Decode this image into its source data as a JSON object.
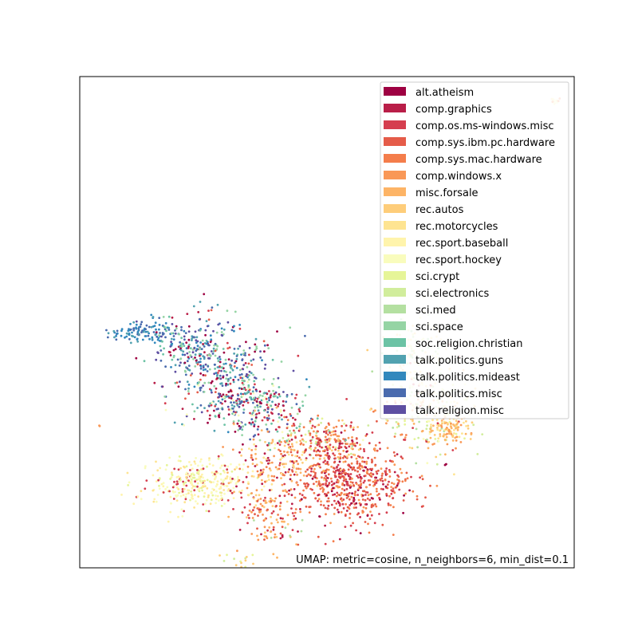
{
  "chart_data": {
    "type": "scatter",
    "title": "",
    "xlabel": "",
    "ylabel": "",
    "ticks": "none",
    "grid": false,
    "legend_position": "top-right",
    "annotation": "UMAP: metric=cosine, n_neighbors=6, min_dist=0.1",
    "series": [
      {
        "name": "alt.atheism",
        "color": "#9e0142"
      },
      {
        "name": "comp.graphics",
        "color": "#b91e48"
      },
      {
        "name": "comp.os.ms-windows.misc",
        "color": "#d53e4f"
      },
      {
        "name": "comp.sys.ibm.pc.hardware",
        "color": "#e55c49"
      },
      {
        "name": "comp.sys.mac.hardware",
        "color": "#f47d4b"
      },
      {
        "name": "comp.windows.x",
        "color": "#f99857"
      },
      {
        "name": "misc.forsale",
        "color": "#fdb466"
      },
      {
        "name": "rec.autos",
        "color": "#fecd7a"
      },
      {
        "name": "rec.motorcycles",
        "color": "#fee491"
      },
      {
        "name": "rec.sport.baseball",
        "color": "#fff4ac"
      },
      {
        "name": "rec.sport.hockey",
        "color": "#f9fcbd"
      },
      {
        "name": "sci.crypt",
        "color": "#e6f598"
      },
      {
        "name": "sci.electronics",
        "color": "#d1ed9c"
      },
      {
        "name": "sci.med",
        "color": "#b4e0a1"
      },
      {
        "name": "sci.space",
        "color": "#95d4a4"
      },
      {
        "name": "soc.religion.christian",
        "color": "#6cc3a5"
      },
      {
        "name": "talk.politics.guns",
        "color": "#52a2b0"
      },
      {
        "name": "talk.politics.mideast",
        "color": "#3288bd"
      },
      {
        "name": "talk.politics.misc",
        "color": "#4a6bae"
      },
      {
        "name": "talk.religion.misc",
        "color": "#5e4fa2"
      }
    ],
    "clusters": [
      {
        "cx": 0.13,
        "cy": 0.48,
        "sx": 0.035,
        "sy": 0.012,
        "n": 110,
        "mix": [
          17,
          17,
          17,
          18,
          16
        ]
      },
      {
        "cx": 0.23,
        "cy": 0.45,
        "sx": 0.04,
        "sy": 0.035,
        "n": 200,
        "mix": [
          17,
          18,
          0,
          15,
          19,
          16,
          1,
          14
        ]
      },
      {
        "cx": 0.3,
        "cy": 0.4,
        "sx": 0.05,
        "sy": 0.045,
        "n": 250,
        "mix": [
          0,
          16,
          19,
          17,
          15,
          14,
          18,
          2,
          3
        ]
      },
      {
        "cx": 0.34,
        "cy": 0.33,
        "sx": 0.06,
        "sy": 0.03,
        "n": 280,
        "mix": [
          0,
          19,
          15,
          18,
          16,
          14,
          1,
          2,
          10
        ]
      },
      {
        "cx": 0.47,
        "cy": 0.27,
        "sx": 0.05,
        "sy": 0.02,
        "n": 120,
        "mix": [
          2,
          3,
          4,
          5,
          13,
          12,
          11,
          15
        ]
      },
      {
        "cx": 0.55,
        "cy": 0.17,
        "sx": 0.06,
        "sy": 0.04,
        "n": 560,
        "mix": [
          2,
          3,
          4,
          1,
          2,
          3,
          4,
          5,
          2,
          3,
          0
        ]
      },
      {
        "cx": 0.5,
        "cy": 0.24,
        "sx": 0.05,
        "sy": 0.03,
        "n": 180,
        "mix": [
          5,
          6,
          1,
          2,
          3,
          4,
          7
        ]
      },
      {
        "cx": 0.7,
        "cy": 0.32,
        "sx": 0.05,
        "sy": 0.05,
        "n": 230,
        "mix": [
          6,
          7,
          8,
          11,
          12,
          13,
          10,
          5,
          2
        ]
      },
      {
        "cx": 0.68,
        "cy": 0.43,
        "sx": 0.04,
        "sy": 0.04,
        "n": 110,
        "mix": [
          10,
          11,
          12,
          13,
          14,
          8,
          7
        ]
      },
      {
        "cx": 0.75,
        "cy": 0.28,
        "sx": 0.02,
        "sy": 0.015,
        "n": 90,
        "mix": [
          6,
          7,
          8,
          5
        ]
      },
      {
        "cx": 0.24,
        "cy": 0.17,
        "sx": 0.05,
        "sy": 0.025,
        "n": 330,
        "mix": [
          9,
          10,
          9,
          10,
          8,
          11,
          2
        ]
      },
      {
        "cx": 0.39,
        "cy": 0.2,
        "sx": 0.04,
        "sy": 0.04,
        "n": 170,
        "mix": [
          6,
          5,
          7,
          8,
          4,
          1
        ]
      },
      {
        "cx": 0.37,
        "cy": 0.12,
        "sx": 0.025,
        "sy": 0.02,
        "n": 60,
        "mix": [
          5,
          6,
          2,
          3,
          7
        ]
      },
      {
        "cx": 0.4,
        "cy": 0.07,
        "sx": 0.03,
        "sy": 0.02,
        "n": 40,
        "mix": [
          1,
          2,
          3,
          5,
          6,
          13
        ]
      },
      {
        "cx": 0.32,
        "cy": 0.02,
        "sx": 0.015,
        "sy": 0.01,
        "n": 15,
        "mix": [
          5,
          11,
          12,
          7
        ]
      },
      {
        "cx": 0.96,
        "cy": 0.95,
        "sx": 0.005,
        "sy": 0.004,
        "n": 20,
        "mix": [
          4,
          8,
          10
        ]
      },
      {
        "cx": 0.04,
        "cy": 0.29,
        "sx": 0.001,
        "sy": 0.001,
        "n": 2,
        "mix": [
          5
        ]
      },
      {
        "cx": 0.74,
        "cy": 0.21,
        "sx": 0.001,
        "sy": 0.001,
        "n": 3,
        "mix": [
          0
        ]
      }
    ]
  }
}
